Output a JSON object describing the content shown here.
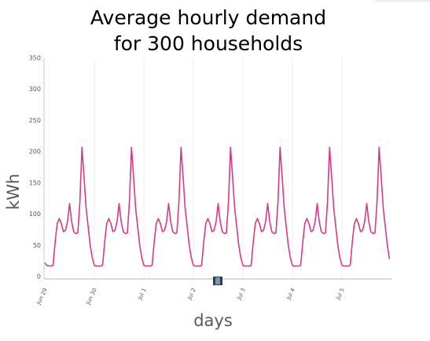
{
  "title": {
    "line1": "Average hourly demand",
    "line2": "for 300 households"
  },
  "chart_data": {
    "type": "line",
    "title": "Average hourly demand for 300 households",
    "xlabel": "days",
    "ylabel": "kWh",
    "ylim": [
      0,
      350
    ],
    "y_ticks": [
      "0",
      "50",
      "100",
      "150",
      "200",
      "250",
      "300",
      "350"
    ],
    "x_ticks": [
      "Jun 29",
      "Jun 30",
      "Jul 1",
      "Jul 2",
      "Jul 3",
      "Jul 4",
      "Jul 5"
    ],
    "x_tick_dates": [
      "2013-06-29",
      "2013-06-30",
      "2013-07-01",
      "2013-07-02",
      "2013-07-03",
      "2013-07-04",
      "2013-07-05"
    ],
    "x_range": [
      "2013-06-29T00:00",
      "2013-07-06T00:00"
    ],
    "grid": "vertical lines at day ticks",
    "legend": "none",
    "series": [
      {
        "color": "#d63a8a",
        "x_dates": [
          "2013-06-29T00:00",
          "2013-06-29T01:00",
          "2013-06-29T02:00",
          "2013-06-29T03:00",
          "2013-06-29T04:00",
          "2013-06-29T05:00",
          "2013-06-29T06:00",
          "2013-06-29T07:00",
          "2013-06-29T08:00",
          "2013-06-29T09:00",
          "2013-06-29T10:00",
          "2013-06-29T11:00",
          "2013-06-29T12:00",
          "2013-06-29T13:00",
          "2013-06-29T14:00",
          "2013-06-29T15:00",
          "2013-06-29T16:00",
          "2013-06-29T17:00",
          "2013-06-29T18:00",
          "2013-06-29T19:00",
          "2013-06-29T20:00",
          "2013-06-29T21:00",
          "2013-06-29T22:00",
          "2013-06-29T23:00",
          "2013-06-30T00:00",
          "2013-06-30T01:00",
          "2013-06-30T02:00",
          "2013-06-30T03:00",
          "2013-06-30T04:00",
          "2013-06-30T05:00",
          "2013-06-30T06:00",
          "2013-06-30T07:00",
          "2013-06-30T08:00",
          "2013-06-30T09:00",
          "2013-06-30T10:00",
          "2013-06-30T11:00",
          "2013-06-30T12:00",
          "2013-06-30T13:00",
          "2013-06-30T14:00",
          "2013-06-30T15:00",
          "2013-06-30T16:00",
          "2013-06-30T17:00",
          "2013-06-30T18:00",
          "2013-06-30T19:00",
          "2013-06-30T20:00",
          "2013-06-30T21:00",
          "2013-06-30T22:00",
          "2013-06-30T23:00",
          "2013-07-01T00:00",
          "2013-07-01T01:00",
          "2013-07-01T02:00",
          "2013-07-01T03:00",
          "2013-07-01T04:00",
          "2013-07-01T05:00",
          "2013-07-01T06:00",
          "2013-07-01T07:00",
          "2013-07-01T08:00",
          "2013-07-01T09:00",
          "2013-07-01T10:00",
          "2013-07-01T11:00",
          "2013-07-01T12:00",
          "2013-07-01T13:00",
          "2013-07-01T14:00",
          "2013-07-01T15:00",
          "2013-07-01T16:00",
          "2013-07-01T17:00",
          "2013-07-01T18:00",
          "2013-07-01T19:00",
          "2013-07-01T20:00",
          "2013-07-01T21:00",
          "2013-07-01T22:00",
          "2013-07-01T23:00",
          "2013-07-02T00:00",
          "2013-07-02T01:00",
          "2013-07-02T02:00",
          "2013-07-02T03:00",
          "2013-07-02T04:00",
          "2013-07-02T05:00",
          "2013-07-02T06:00",
          "2013-07-02T07:00",
          "2013-07-02T08:00",
          "2013-07-02T09:00",
          "2013-07-02T10:00",
          "2013-07-02T11:00",
          "2013-07-02T12:00",
          "2013-07-02T13:00",
          "2013-07-02T14:00",
          "2013-07-02T15:00",
          "2013-07-02T16:00",
          "2013-07-02T17:00",
          "2013-07-02T18:00",
          "2013-07-02T19:00",
          "2013-07-02T20:00",
          "2013-07-02T21:00",
          "2013-07-02T22:00",
          "2013-07-02T23:00",
          "2013-07-03T00:00",
          "2013-07-03T01:00",
          "2013-07-03T02:00",
          "2013-07-03T03:00",
          "2013-07-03T04:00",
          "2013-07-03T05:00",
          "2013-07-03T06:00",
          "2013-07-03T07:00",
          "2013-07-03T08:00",
          "2013-07-03T09:00",
          "2013-07-03T10:00",
          "2013-07-03T11:00",
          "2013-07-03T12:00",
          "2013-07-03T13:00",
          "2013-07-03T14:00",
          "2013-07-03T15:00",
          "2013-07-03T16:00",
          "2013-07-03T17:00",
          "2013-07-03T18:00",
          "2013-07-03T19:00",
          "2013-07-03T20:00",
          "2013-07-03T21:00",
          "2013-07-03T22:00",
          "2013-07-03T23:00",
          "2013-07-04T00:00",
          "2013-07-04T01:00",
          "2013-07-04T02:00",
          "2013-07-04T03:00",
          "2013-07-04T04:00",
          "2013-07-04T05:00",
          "2013-07-04T06:00",
          "2013-07-04T07:00",
          "2013-07-04T08:00",
          "2013-07-04T09:00",
          "2013-07-04T10:00",
          "2013-07-04T11:00",
          "2013-07-04T12:00",
          "2013-07-04T13:00",
          "2013-07-04T14:00",
          "2013-07-04T15:00",
          "2013-07-04T16:00",
          "2013-07-04T17:00",
          "2013-07-04T18:00",
          "2013-07-04T19:00",
          "2013-07-04T20:00",
          "2013-07-04T21:00",
          "2013-07-04T22:00",
          "2013-07-04T23:00",
          "2013-07-05T00:00",
          "2013-07-05T01:00",
          "2013-07-05T02:00",
          "2013-07-05T03:00",
          "2013-07-05T04:00",
          "2013-07-05T05:00",
          "2013-07-05T06:00",
          "2013-07-05T07:00",
          "2013-07-05T08:00",
          "2013-07-05T09:00",
          "2013-07-05T10:00",
          "2013-07-05T11:00",
          "2013-07-05T12:00",
          "2013-07-05T13:00",
          "2013-07-05T14:00",
          "2013-07-05T15:00",
          "2013-07-05T16:00",
          "2013-07-05T17:00",
          "2013-07-05T18:00",
          "2013-07-05T19:00",
          "2013-07-05T20:00",
          "2013-07-05T21:00",
          "2013-07-05T22:00",
          "2013-07-05T23:00"
        ],
        "values": [
          22,
          18,
          17,
          17,
          18,
          55,
          85,
          93,
          85,
          72,
          74,
          88,
          117,
          88,
          72,
          69,
          70,
          120,
          207,
          160,
          110,
          80,
          50,
          30,
          18,
          17,
          17,
          17,
          18,
          55,
          85,
          93,
          85,
          72,
          74,
          88,
          117,
          88,
          72,
          69,
          70,
          120,
          207,
          160,
          110,
          80,
          50,
          30,
          18,
          17,
          17,
          17,
          18,
          55,
          85,
          93,
          85,
          72,
          74,
          88,
          117,
          88,
          72,
          69,
          70,
          120,
          207,
          160,
          110,
          80,
          50,
          30,
          18,
          17,
          17,
          17,
          18,
          55,
          85,
          93,
          85,
          72,
          74,
          88,
          117,
          88,
          72,
          69,
          70,
          120,
          207,
          160,
          110,
          80,
          50,
          30,
          18,
          17,
          17,
          17,
          18,
          55,
          85,
          93,
          85,
          72,
          74,
          88,
          117,
          88,
          72,
          69,
          70,
          120,
          207,
          160,
          110,
          80,
          50,
          30,
          18,
          17,
          17,
          17,
          18,
          55,
          85,
          93,
          85,
          72,
          74,
          88,
          117,
          88,
          72,
          69,
          70,
          120,
          207,
          160,
          110,
          80,
          50,
          30,
          18,
          17,
          17,
          17,
          18,
          55,
          85,
          93,
          85,
          72,
          74,
          88,
          117,
          88,
          72,
          69,
          70,
          120,
          207,
          160,
          110,
          80,
          50,
          28
        ]
      }
    ]
  },
  "scrollbar": {
    "handle_color": "#2d3c4f",
    "handle_fill": "#7f93a6"
  }
}
